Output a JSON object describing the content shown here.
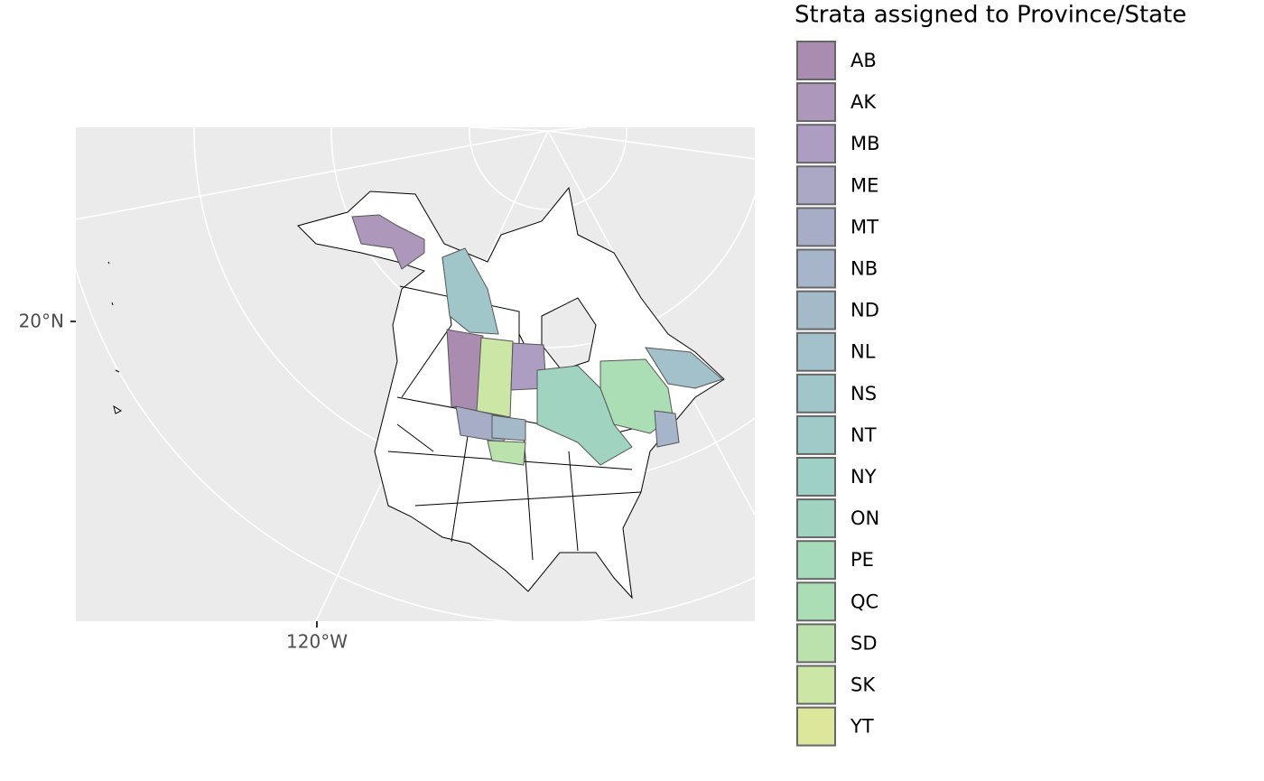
{
  "legend": {
    "title": "Strata assigned to Province/State",
    "items": [
      {
        "label": "AB",
        "color": "#a98cb0"
      },
      {
        "label": "AK",
        "color": "#ad97bb"
      },
      {
        "label": "MB",
        "color": "#ad9dc2"
      },
      {
        "label": "ME",
        "color": "#aba8c6"
      },
      {
        "label": "MT",
        "color": "#a8adc7"
      },
      {
        "label": "NB",
        "color": "#a6b5c9"
      },
      {
        "label": "ND",
        "color": "#a5bac9"
      },
      {
        "label": "NL",
        "color": "#a3c1ca"
      },
      {
        "label": "NS",
        "color": "#a1c6c9"
      },
      {
        "label": "NT",
        "color": "#a0cac8"
      },
      {
        "label": "NY",
        "color": "#9fd0c6"
      },
      {
        "label": "ON",
        "color": "#a0d4c1"
      },
      {
        "label": "PE",
        "color": "#a5dabb"
      },
      {
        "label": "QC",
        "color": "#acdeb5"
      },
      {
        "label": "SD",
        "color": "#bbe2ad"
      },
      {
        "label": "SK",
        "color": "#cce6a6"
      },
      {
        "label": "YT",
        "color": "#dde79c"
      }
    ]
  },
  "axes": {
    "y_label": "20°N",
    "x_label": "120°W"
  }
}
